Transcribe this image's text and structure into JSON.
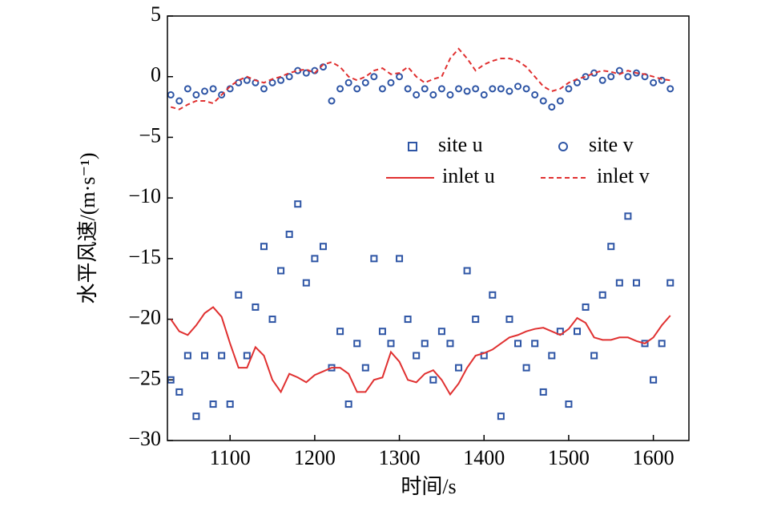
{
  "chart_data": {
    "type": "line",
    "xlabel": "时间/s",
    "ylabel": "水平风速/(m·s⁻¹)",
    "xlim": [
      1026,
      1642
    ],
    "xticks": [
      1100,
      1200,
      1300,
      1400,
      1500,
      1600
    ],
    "ylim": [
      -30,
      5
    ],
    "yticks": [
      {
        "value": -30,
        "label": "−30"
      },
      {
        "value": -25,
        "label": "−25"
      },
      {
        "value": -20,
        "label": "−20"
      },
      {
        "value": -15,
        "label": "−15"
      },
      {
        "value": -10,
        "label": "−10"
      },
      {
        "value": -5,
        "label": "−5"
      },
      0,
      5
    ],
    "x": [
      1030,
      1040,
      1050,
      1060,
      1070,
      1080,
      1090,
      1100,
      1110,
      1120,
      1130,
      1140,
      1150,
      1160,
      1170,
      1180,
      1190,
      1200,
      1210,
      1220,
      1230,
      1240,
      1250,
      1260,
      1270,
      1280,
      1290,
      1300,
      1310,
      1320,
      1330,
      1340,
      1350,
      1360,
      1370,
      1380,
      1390,
      1400,
      1410,
      1420,
      1430,
      1440,
      1450,
      1460,
      1470,
      1480,
      1490,
      1500,
      1510,
      1520,
      1530,
      1540,
      1550,
      1560,
      1570,
      1580,
      1590,
      1600,
      1610,
      1620
    ],
    "series": [
      {
        "name": "site u",
        "color": "#2e55a5",
        "marker": "square",
        "line": "none",
        "values": [
          -25,
          -26,
          -23,
          -28,
          -23,
          -27,
          -23,
          -27,
          -18,
          -23,
          -19,
          -14,
          -20,
          -16,
          -13,
          -10.5,
          -17,
          -15,
          -14,
          -24,
          -21,
          -27,
          -22,
          -24,
          -15,
          -21,
          -22,
          -15,
          -20,
          -23,
          -22,
          -25,
          -21,
          -22,
          -24,
          -16,
          -20,
          -23,
          -18,
          -28,
          -20,
          -22,
          -24,
          -22,
          -26,
          -23,
          -21,
          -27,
          -21,
          -19,
          -23,
          -18,
          -14,
          -17,
          -11.5,
          -17,
          -22,
          -25,
          -22,
          -17
        ]
      },
      {
        "name": "site v",
        "color": "#2e55a5",
        "marker": "circle",
        "line": "none",
        "values": [
          -1.5,
          -2,
          -1,
          -1.5,
          -1.2,
          -1,
          -1.5,
          -1,
          -0.5,
          -0.3,
          -0.5,
          -1,
          -0.5,
          -0.3,
          0,
          0.5,
          0.3,
          0.5,
          0.8,
          -2,
          -1,
          -0.5,
          -1,
          -0.5,
          0,
          -1,
          -0.5,
          0,
          -1,
          -1.5,
          -1,
          -1.5,
          -1,
          -1.5,
          -1,
          -1.2,
          -1,
          -1.5,
          -1,
          -1,
          -1.2,
          -0.8,
          -1,
          -1.5,
          -2,
          -2.5,
          -2,
          -1,
          -0.5,
          0,
          0.3,
          -0.3,
          0,
          0.5,
          0,
          0.3,
          0,
          -0.5,
          -0.3,
          -1
        ]
      },
      {
        "name": "inlet u",
        "color": "#e03030",
        "marker": "none",
        "line": "solid",
        "values": [
          -20,
          -21,
          -21.3,
          -20.5,
          -19.5,
          -19,
          -19.8,
          -22,
          -24,
          -24,
          -22.3,
          -23,
          -25,
          -26,
          -24.5,
          -24.8,
          -25.2,
          -24.6,
          -24.3,
          -24,
          -24,
          -24.5,
          -26,
          -26,
          -25,
          -24.8,
          -22.7,
          -23.5,
          -25,
          -25.2,
          -24.5,
          -24.2,
          -25,
          -26.2,
          -25.3,
          -24,
          -23,
          -22.8,
          -22.5,
          -22,
          -21.5,
          -21.3,
          -21,
          -20.8,
          -20.7,
          -21,
          -21.3,
          -20.8,
          -19.9,
          -20.3,
          -21.5,
          -21.7,
          -21.7,
          -21.5,
          -21.5,
          -21.8,
          -22,
          -21.5,
          -20.5,
          -19.7
        ]
      },
      {
        "name": "inlet v",
        "color": "#e03030",
        "marker": "none",
        "line": "dashed",
        "values": [
          -2.5,
          -2.7,
          -2.3,
          -2,
          -2,
          -2.2,
          -1.5,
          -0.8,
          -0.3,
          0,
          -0.3,
          -0.5,
          -0.2,
          0,
          0.3,
          0.5,
          0.6,
          0.3,
          1,
          1.2,
          0.8,
          0,
          -0.3,
          0,
          0.5,
          0.7,
          0.2,
          0.3,
          0.8,
          0,
          -0.5,
          -0.2,
          0,
          1.5,
          2.3,
          1.5,
          0.5,
          1,
          1.3,
          1.5,
          1.5,
          1.3,
          0.8,
          0,
          -0.8,
          -1.2,
          -1,
          -0.5,
          -0.2,
          0,
          0.3,
          0.5,
          0.4,
          0.2,
          0.5,
          0.3,
          0.2,
          0,
          -0.2,
          -0.3
        ]
      }
    ]
  }
}
